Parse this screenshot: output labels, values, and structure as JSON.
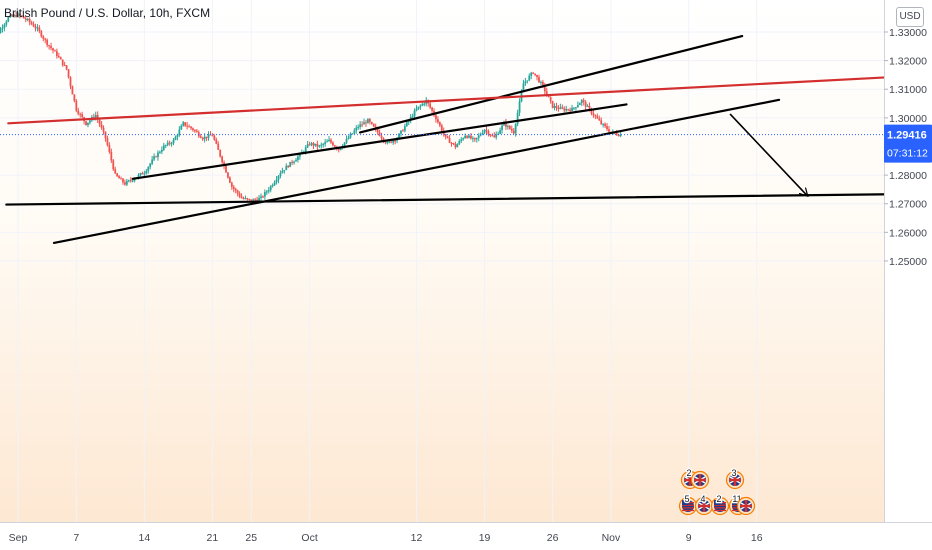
{
  "chart_data": {
    "type": "candlestick",
    "title": "British Pound / U.S. Dollar, 10h, FXCM",
    "price_unit": "USD",
    "x_ticks": [
      {
        "label": "Sep",
        "day": 1
      },
      {
        "label": "7",
        "day": 7
      },
      {
        "label": "14",
        "day": 14
      },
      {
        "label": "21",
        "day": 21
      },
      {
        "label": "25",
        "day": 25
      },
      {
        "label": "Oct",
        "day": 31
      },
      {
        "label": "12",
        "day": 42
      },
      {
        "label": "19",
        "day": 49
      },
      {
        "label": "26",
        "day": 56
      },
      {
        "label": "Nov",
        "day": 62
      },
      {
        "label": "9",
        "day": 70
      },
      {
        "label": "16",
        "day": 77
      }
    ],
    "y_ticks": [
      1.33,
      1.32,
      1.31,
      1.3,
      1.28,
      1.27,
      1.26,
      1.25
    ],
    "y_tick_labels": [
      "1.33000",
      "1.32000",
      "1.31000",
      "1.30000",
      "1.28000",
      "1.27000",
      "1.26000",
      "1.25000"
    ],
    "ylim": [
      1.2438,
      1.3367
    ],
    "xlim": [
      -2,
      81
    ],
    "last_price": 1.29416,
    "last_price_label": "1.29416",
    "countdown": "07:31:12",
    "colors": {
      "up": "#26a69a",
      "down": "#ef5350",
      "trend": "#000000",
      "resistance": "#d32f2f",
      "price_tag": "#2962ff"
    },
    "price_path": [
      [
        -2,
        1.32
      ],
      [
        -1,
        1.33
      ],
      [
        0,
        1.335
      ],
      [
        1,
        1.336
      ],
      [
        2,
        1.334
      ],
      [
        3,
        1.331
      ],
      [
        4,
        1.326
      ],
      [
        5,
        1.322
      ],
      [
        6,
        1.317
      ],
      [
        7,
        1.303
      ],
      [
        8,
        1.298
      ],
      [
        9,
        1.301
      ],
      [
        10,
        1.293
      ],
      [
        11,
        1.28
      ],
      [
        12,
        1.277
      ],
      [
        13,
        1.279
      ],
      [
        14,
        1.281
      ],
      [
        15,
        1.286
      ],
      [
        16,
        1.29
      ],
      [
        17,
        1.292
      ],
      [
        18,
        1.298
      ],
      [
        19,
        1.296
      ],
      [
        20,
        1.293
      ],
      [
        21,
        1.294
      ],
      [
        22,
        1.285
      ],
      [
        23,
        1.276
      ],
      [
        24,
        1.272
      ],
      [
        25,
        1.271
      ],
      [
        26,
        1.272
      ],
      [
        27,
        1.276
      ],
      [
        28,
        1.281
      ],
      [
        29,
        1.284
      ],
      [
        30,
        1.287
      ],
      [
        31,
        1.291
      ],
      [
        32,
        1.29
      ],
      [
        33,
        1.292
      ],
      [
        34,
        1.289
      ],
      [
        35,
        1.293
      ],
      [
        36,
        1.297
      ],
      [
        37,
        1.299
      ],
      [
        38,
        1.295
      ],
      [
        39,
        1.291
      ],
      [
        40,
        1.293
      ],
      [
        41,
        1.298
      ],
      [
        42,
        1.303
      ],
      [
        43,
        1.306
      ],
      [
        44,
        1.3
      ],
      [
        45,
        1.293
      ],
      [
        46,
        1.29
      ],
      [
        47,
        1.294
      ],
      [
        48,
        1.292
      ],
      [
        49,
        1.296
      ],
      [
        50,
        1.293
      ],
      [
        51,
        1.298
      ],
      [
        52,
        1.295
      ],
      [
        53,
        1.312
      ],
      [
        54,
        1.316
      ],
      [
        55,
        1.311
      ],
      [
        56,
        1.304
      ],
      [
        57,
        1.303
      ],
      [
        58,
        1.303
      ],
      [
        59,
        1.306
      ],
      [
        60,
        1.302
      ],
      [
        61,
        1.298
      ],
      [
        62,
        1.295
      ],
      [
        63,
        1.294
      ]
    ],
    "drawings": [
      {
        "name": "upper-channel-line",
        "color": "trend",
        "width": 2.2,
        "from": [
          36.2,
          1.2949
        ],
        "to": [
          75.5,
          1.3286
        ]
      },
      {
        "name": "middle-channel-line",
        "color": "trend",
        "width": 2.2,
        "from": [
          12.8,
          1.2787
        ],
        "to": [
          63.6,
          1.3047
        ]
      },
      {
        "name": "lower-channel-line",
        "color": "trend",
        "width": 2.2,
        "from": [
          4.7,
          1.2563
        ],
        "to": [
          79.3,
          1.3063
        ]
      },
      {
        "name": "resistance-line",
        "color": "resistance",
        "width": 2.2,
        "from": [
          0,
          1.2981
        ],
        "to": [
          94.6,
          1.3149
        ]
      },
      {
        "name": "support-line",
        "color": "trend",
        "width": 2.2,
        "from": [
          -0.2,
          1.2697
        ],
        "to": [
          98.4,
          1.2736
        ]
      },
      {
        "name": "forecast-line",
        "color": "trend",
        "width": 1.6,
        "from": [
          74.3,
          1.3012
        ],
        "to": [
          82.2,
          1.2728
        ],
        "arrow": true
      }
    ]
  }
}
